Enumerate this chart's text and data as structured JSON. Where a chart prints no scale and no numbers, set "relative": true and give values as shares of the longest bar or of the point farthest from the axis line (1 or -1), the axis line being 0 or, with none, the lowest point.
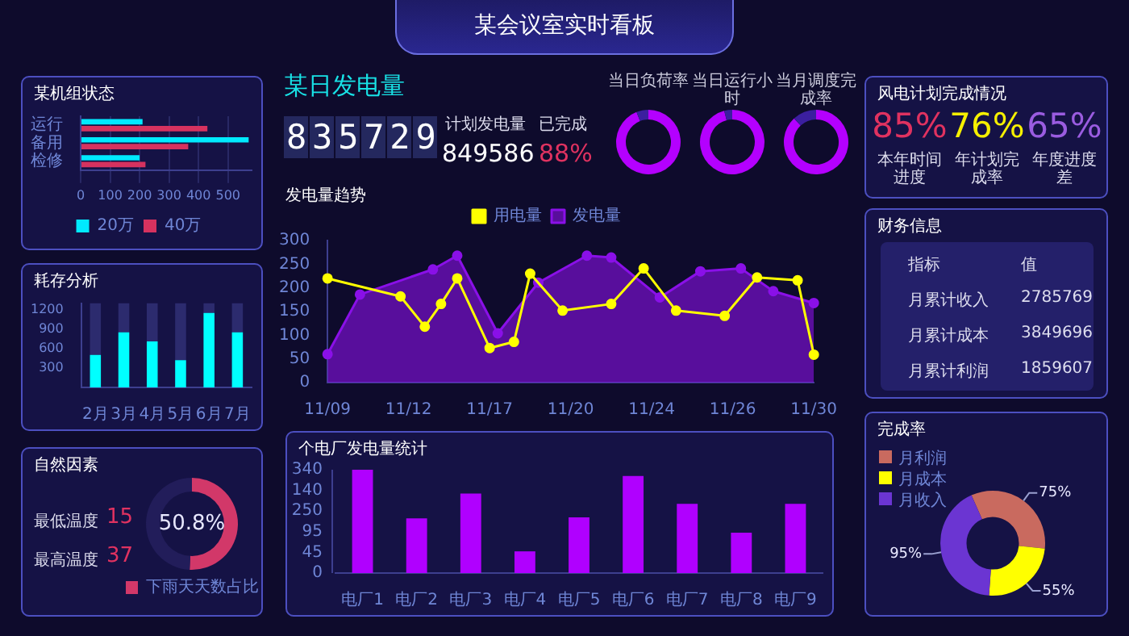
{
  "chart_data": [
    {
      "type": "other",
      "title": "某会议室实时看板"
    },
    {
      "type": "bar",
      "title": "某机组状态",
      "orientation": "horizontal",
      "categories": [
        "运行",
        "备用",
        "检修"
      ],
      "series": [
        {
          "name": "20万",
          "color": "#00eaff",
          "values": [
            210,
            570,
            200
          ]
        },
        {
          "name": "40万",
          "color": "#d6325f",
          "values": [
            430,
            365,
            220
          ]
        }
      ],
      "xlim": [
        0,
        580
      ],
      "xticks": [
        0,
        100,
        200,
        300,
        400,
        500
      ],
      "grid": "x",
      "legend": "bottom"
    },
    {
      "type": "bar",
      "title": "耗存分析",
      "stacked": true,
      "categories": [
        "2月",
        "3月",
        "4月",
        "5月",
        "6月",
        "7月"
      ],
      "series": [
        {
          "color": "#00ffff",
          "values": [
            500,
            850,
            710,
            420,
            1150,
            850
          ]
        },
        {
          "color": "#2c2b6e",
          "values": [
            800,
            450,
            590,
            880,
            150,
            450
          ]
        }
      ],
      "ylim": [
        0,
        1300
      ],
      "yticks": [
        300,
        600,
        900,
        1200
      ]
    },
    {
      "type": "donut",
      "title": "自然因素",
      "categories": [
        "下雨天天数占比",
        null
      ],
      "values": [
        50.8,
        49.2
      ],
      "colors": [
        "#d23869",
        "#221d5a"
      ],
      "value_labels": [
        "50.8%",
        null
      ],
      "legend": "bottom",
      "annotations": [
        "最低温度",
        "15",
        "最高温度",
        "37"
      ]
    },
    {
      "type": "other",
      "title": "某日发电量",
      "annotations": [
        "835729",
        "计划发电量",
        "849586",
        "已完成",
        "88%"
      ]
    },
    {
      "type": "donut",
      "title": "当日负荷率",
      "categories": [
        null,
        null
      ],
      "values": [
        94,
        6
      ],
      "colors": [
        "#b400ff",
        "#3b1f9f"
      ]
    },
    {
      "type": "donut",
      "title": "当日运行小时",
      "categories": [
        null,
        null
      ],
      "values": [
        96,
        4
      ],
      "colors": [
        "#b400ff",
        "#3b1f9f"
      ]
    },
    {
      "type": "donut",
      "title": "当月调度完成率",
      "categories": [
        null,
        null
      ],
      "values": [
        88,
        12
      ],
      "colors": [
        "#b400ff",
        "#3b1f9f"
      ]
    },
    {
      "type": "line",
      "title": "发电量趋势",
      "categories": [
        "11/09",
        null,
        null,
        null,
        null,
        null,
        null,
        null,
        null,
        null,
        "11/12",
        null,
        null,
        null,
        null,
        null,
        null,
        null,
        null,
        null,
        "11/17",
        null,
        null,
        null,
        null,
        null,
        null,
        null,
        null,
        null,
        "11/20",
        null,
        null,
        null,
        null,
        null,
        null,
        null,
        null,
        null,
        "11/24",
        null,
        null,
        null,
        null,
        null,
        null,
        null,
        null,
        null,
        "11/26",
        null,
        null,
        null,
        null,
        null,
        null,
        null,
        null,
        null,
        "11/30"
      ],
      "ylim": [
        0,
        300
      ],
      "yticks": [
        0,
        50,
        100,
        150,
        200,
        250,
        300
      ],
      "legend": "top",
      "marker": "circle",
      "series": [
        {
          "name": "发电量",
          "type": "area",
          "color": "#8a10e8",
          "values": [
            60,
            null,
            null,
            null,
            186,
            null,
            null,
            null,
            null,
            null,
            null,
            null,
            null,
            239,
            null,
            null,
            268,
            null,
            null,
            null,
            null,
            104,
            null,
            null,
            null,
            null,
            211,
            null,
            null,
            null,
            null,
            null,
            268,
            null,
            null,
            264,
            null,
            null,
            null,
            null,
            null,
            180,
            null,
            null,
            null,
            null,
            235,
            null,
            null,
            null,
            null,
            241,
            null,
            null,
            null,
            193,
            null,
            null,
            null,
            null,
            168
          ]
        },
        {
          "name": "用电量",
          "type": "line",
          "color": "#ffff00",
          "values": [
            220,
            null,
            null,
            null,
            null,
            null,
            null,
            null,
            null,
            182,
            null,
            null,
            118,
            null,
            166,
            null,
            220,
            null,
            null,
            null,
            73,
            null,
            null,
            86,
            null,
            230,
            null,
            null,
            null,
            152,
            null,
            null,
            null,
            null,
            null,
            166,
            null,
            null,
            null,
            241,
            null,
            null,
            null,
            152,
            null,
            null,
            null,
            null,
            null,
            141,
            null,
            null,
            null,
            222,
            null,
            null,
            null,
            null,
            216,
            null,
            59
          ]
        }
      ]
    },
    {
      "type": "bar",
      "title": "个电厂发电量统计",
      "relative": true,
      "categories": [
        "电厂1",
        "电厂2",
        "电厂3",
        "电厂4",
        "电厂5",
        "电厂6",
        "电厂7",
        "电厂8",
        "电厂9"
      ],
      "values": [
        1,
        0.53,
        0.77,
        0.21,
        0.54,
        0.94,
        0.67,
        0.39,
        0.67
      ],
      "color": "#b000ff",
      "annotations": [
        "0",
        "45",
        "95",
        "250",
        "140",
        "340"
      ]
    },
    {
      "type": "other",
      "title": "风电计划完成情况",
      "annotations": [
        "85%",
        "本年时间进度",
        "76%",
        "年计划完成率",
        "65%",
        "年度进度差"
      ]
    },
    {
      "type": "other",
      "title": "财务信息",
      "annotations": [
        "指标",
        "值",
        "月累计收入",
        "2785769",
        "月累计成本",
        "3849696",
        "月累计利润",
        "1859607"
      ]
    },
    {
      "type": "donut",
      "title": "完成率",
      "categories": [
        "月利润",
        "月成本",
        "月收入"
      ],
      "values": [
        75,
        55,
        95
      ],
      "colors": [
        "#c96a5f",
        "#ffff00",
        "#6b35d2"
      ],
      "value_labels": [
        "75%",
        "55%",
        "95%"
      ],
      "legend": "top left"
    }
  ]
}
